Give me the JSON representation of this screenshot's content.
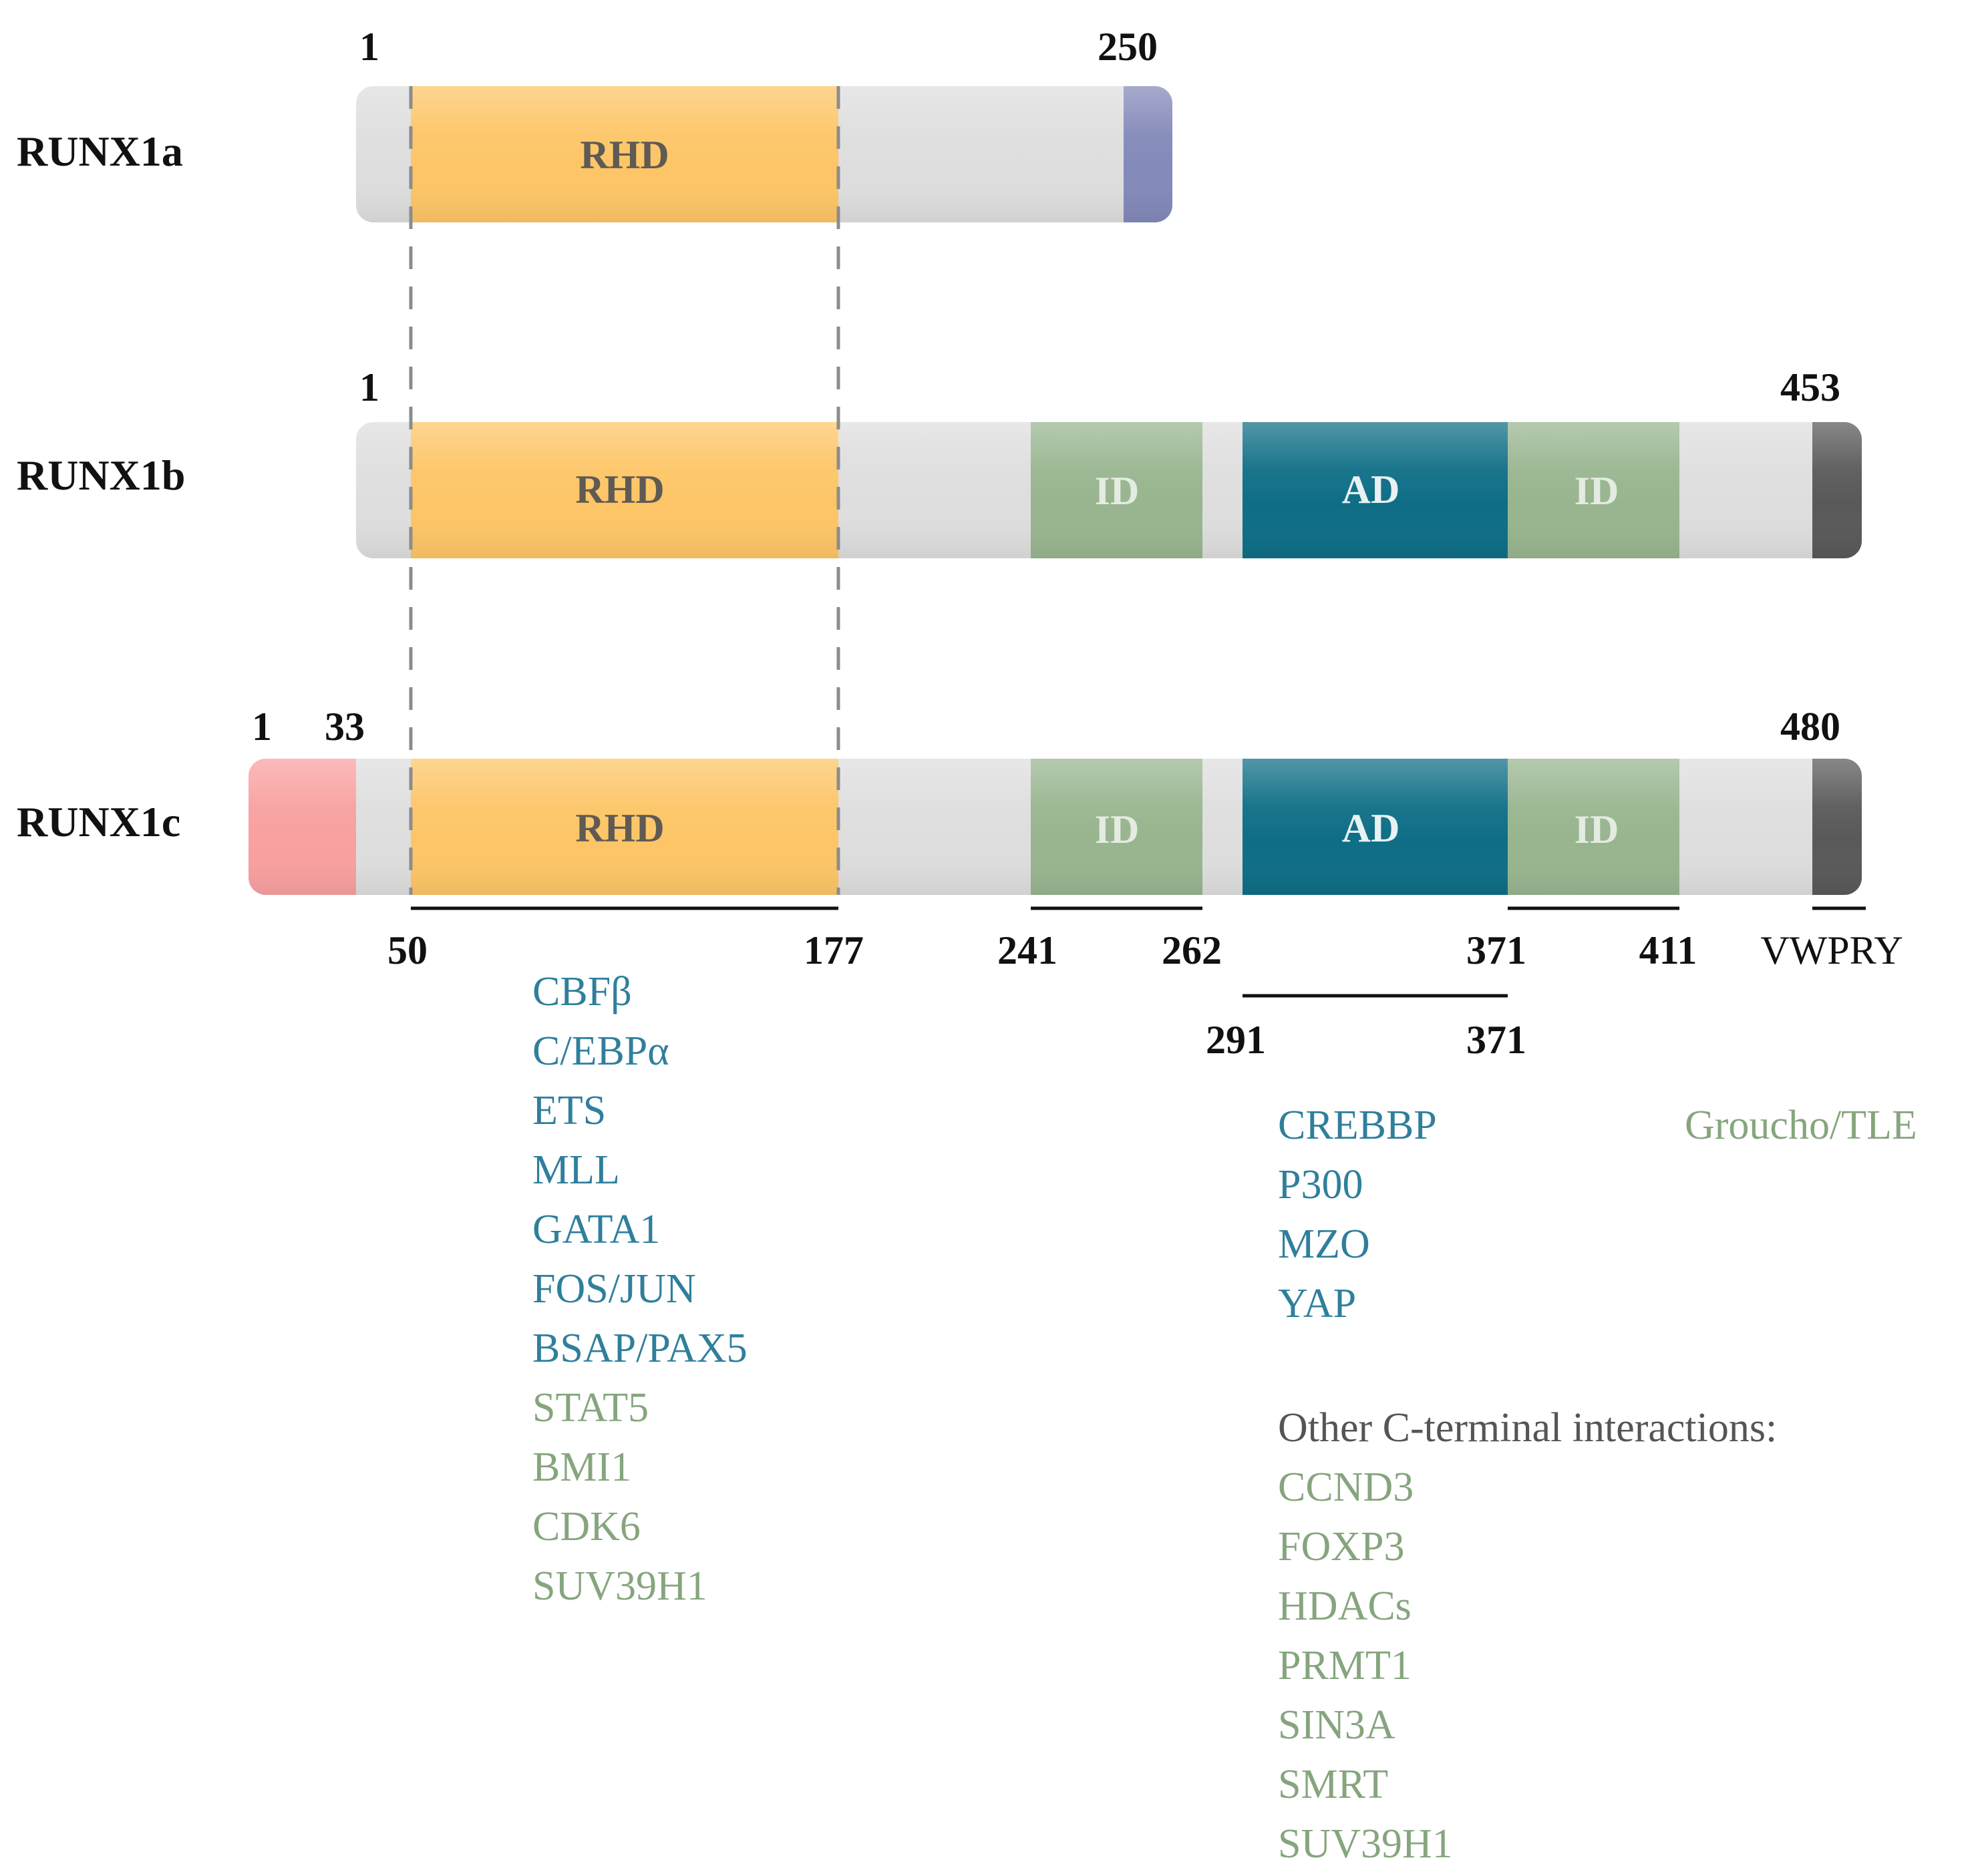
{
  "isoforms": [
    {
      "id": "a",
      "label": "RUNX1a",
      "start_label": "1",
      "end_label": "250",
      "domains": {
        "rhd": "RHD"
      }
    },
    {
      "id": "b",
      "label": "RUNX1b",
      "start_label": "1",
      "end_label": "453",
      "domains": {
        "rhd": "RHD",
        "id1": "ID",
        "ad": "AD",
        "id2": "ID"
      }
    },
    {
      "id": "c",
      "label": "RUNX1c",
      "start_label": "1",
      "exon_label": "33",
      "end_label": "480",
      "domains": {
        "rhd": "RHD",
        "id1": "ID",
        "ad": "AD",
        "id2": "ID"
      }
    }
  ],
  "region_labels": {
    "rhd_start": "50",
    "rhd_end": "177",
    "id1_start": "241",
    "id1_end": "262",
    "id2_start": "371",
    "id2_end": "411",
    "vwpry": "VWPRY",
    "ad_start": "291",
    "ad_end": "371"
  },
  "binding_partners": {
    "rhd": [
      {
        "text": "CBFβ",
        "tone": "blue"
      },
      {
        "text": "C/EBPα",
        "tone": "blue"
      },
      {
        "text": "ETS",
        "tone": "blue"
      },
      {
        "text": "MLL",
        "tone": "blue"
      },
      {
        "text": "GATA1",
        "tone": "blue"
      },
      {
        "text": "FOS/JUN",
        "tone": "blue"
      },
      {
        "text": "BSAP/PAX5",
        "tone": "blue"
      },
      {
        "text": "STAT5",
        "tone": "green"
      },
      {
        "text": "BMI1",
        "tone": "green"
      },
      {
        "text": "CDK6",
        "tone": "green"
      },
      {
        "text": "SUV39H1",
        "tone": "green"
      }
    ],
    "ad": [
      {
        "text": "CREBBP",
        "tone": "blue"
      },
      {
        "text": "P300",
        "tone": "blue"
      },
      {
        "text": "MZO",
        "tone": "blue"
      },
      {
        "text": "YAP",
        "tone": "blue"
      }
    ],
    "vwpry": [
      {
        "text": "Groucho/TLE",
        "tone": "green"
      }
    ],
    "other_heading": "Other C-terminal interactions:",
    "other": [
      {
        "text": "CCND3",
        "tone": "green"
      },
      {
        "text": "FOXP3",
        "tone": "green"
      },
      {
        "text": "HDACs",
        "tone": "green"
      },
      {
        "text": "PRMT1",
        "tone": "green"
      },
      {
        "text": "SIN3A",
        "tone": "green"
      },
      {
        "text": "SMRT",
        "tone": "green"
      },
      {
        "text": "SUV39H1",
        "tone": "green"
      }
    ]
  },
  "colors": {
    "backbone": "#dddedd",
    "rhd": "#fdc566",
    "id": "#98b58f",
    "ad": "#0e6e86",
    "c_term_a": "#8389b9",
    "c_term": "#5a5959",
    "n_term_c": "#f9a0a0",
    "partner_blue": "#2f7f9c",
    "partner_green": "#86a57e"
  }
}
